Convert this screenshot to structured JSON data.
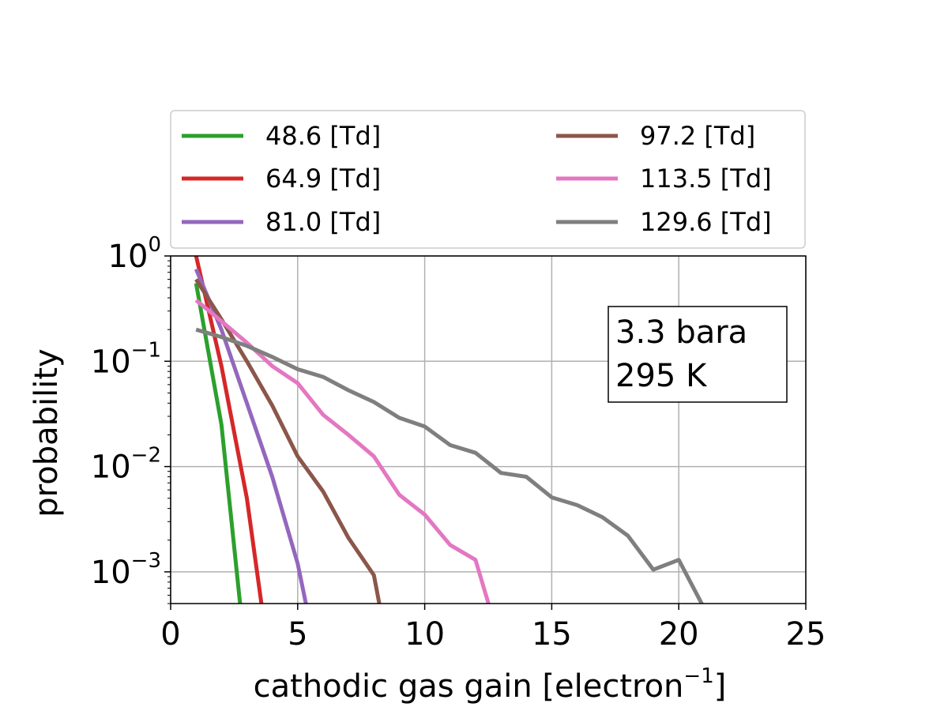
{
  "chart_data": {
    "type": "line",
    "xlabel": "cathodic gas gain [electron",
    "xlabel_sup": "−1",
    "xlabel_end": "]",
    "ylabel": "probability",
    "xlim": [
      0,
      25
    ],
    "ylim": [
      0.0005,
      1
    ],
    "yscale": "log",
    "grid": true,
    "legend_position": "top",
    "x_ticks": [
      {
        "value": 0,
        "label": "0"
      },
      {
        "value": 5,
        "label": "5"
      },
      {
        "value": 10,
        "label": "10"
      },
      {
        "value": 15,
        "label": "15"
      },
      {
        "value": 20,
        "label": "20"
      },
      {
        "value": 25,
        "label": "25"
      }
    ],
    "y_ticks": [
      {
        "value": 1,
        "base": "10",
        "exp": "0"
      },
      {
        "value": 0.1,
        "base": "10",
        "exp": "−1"
      },
      {
        "value": 0.01,
        "base": "10",
        "exp": "−2"
      },
      {
        "value": 0.001,
        "base": "10",
        "exp": "−3"
      }
    ],
    "annotation": [
      "3.3 bara",
      "295 K"
    ],
    "series": [
      {
        "name": "48.6 [Td]",
        "color": "#2ca02c",
        "x": [
          1,
          2,
          3
        ],
        "y": [
          0.55,
          0.025,
          0.00012
        ]
      },
      {
        "name": "64.9 [Td]",
        "color": "#d62728",
        "x": [
          1,
          2,
          3,
          4
        ],
        "y": [
          1.0,
          0.09,
          0.005,
          9e-05
        ]
      },
      {
        "name": "81.0 [Td]",
        "color": "#9467bd",
        "x": [
          1,
          2,
          3,
          4,
          5,
          6
        ],
        "y": [
          0.75,
          0.2,
          0.04,
          0.008,
          0.0012,
          8e-05
        ]
      },
      {
        "name": "97.2 [Td]",
        "color": "#8c564b",
        "x": [
          1,
          2,
          3,
          4,
          5,
          6,
          7,
          8,
          9
        ],
        "y": [
          0.6,
          0.25,
          0.1,
          0.038,
          0.0125,
          0.0058,
          0.0021,
          0.00093,
          5e-05
        ]
      },
      {
        "name": "113.5 [Td]",
        "color": "#e377c2",
        "x": [
          1,
          2,
          3,
          4,
          5,
          6,
          7,
          8,
          9,
          10,
          11,
          12,
          13
        ],
        "y": [
          0.38,
          0.24,
          0.15,
          0.09,
          0.062,
          0.031,
          0.02,
          0.0125,
          0.0054,
          0.0035,
          0.0018,
          0.0013,
          0.0002
        ]
      },
      {
        "name": "129.6 [Td]",
        "color": "#7f7f7f",
        "x": [
          1,
          2,
          3,
          4,
          5,
          6,
          7,
          8,
          9,
          10,
          11,
          12,
          13,
          14,
          15,
          16,
          17,
          18,
          19,
          20,
          21,
          22
        ],
        "y": [
          0.2,
          0.17,
          0.14,
          0.11,
          0.084,
          0.071,
          0.053,
          0.041,
          0.029,
          0.024,
          0.016,
          0.0135,
          0.0087,
          0.008,
          0.0051,
          0.0043,
          0.0033,
          0.0022,
          0.00105,
          0.0013,
          0.00045,
          0.0001
        ]
      }
    ]
  }
}
